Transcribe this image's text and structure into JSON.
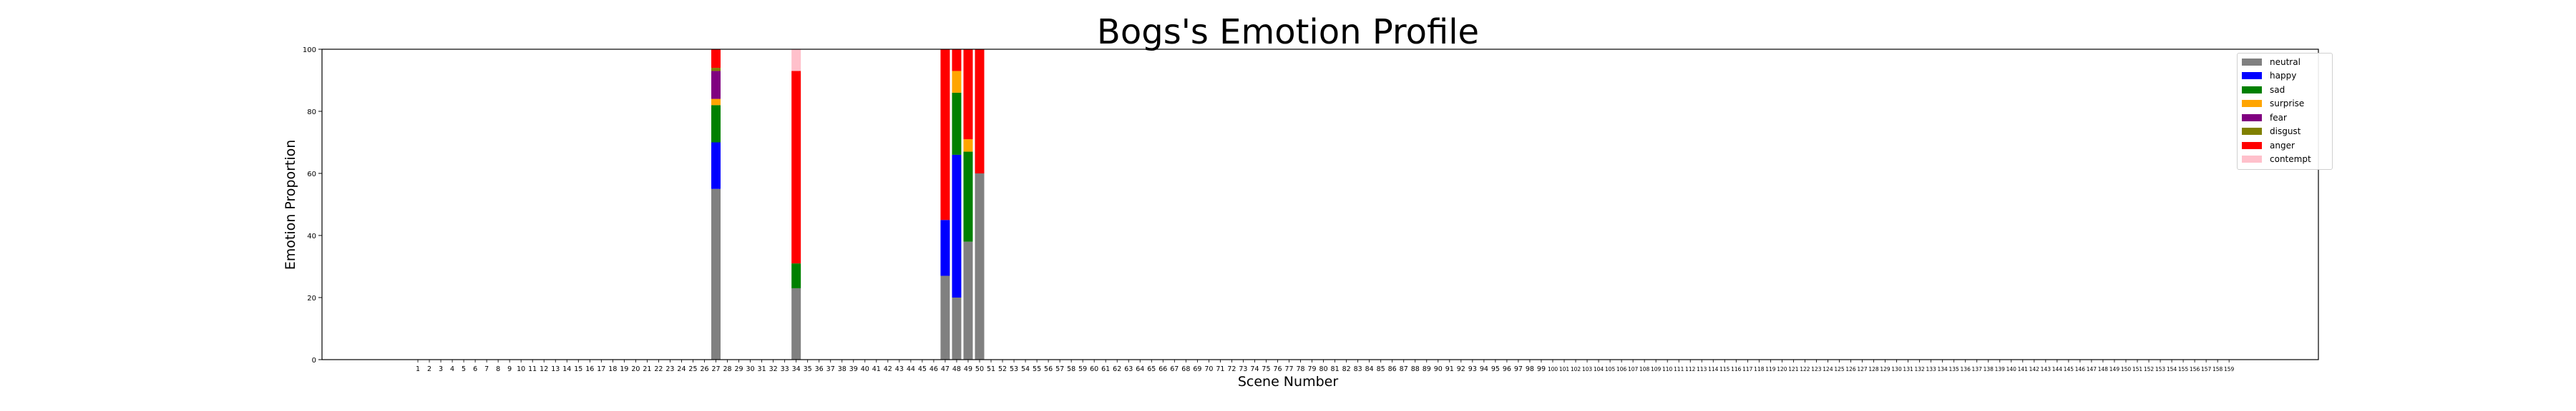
{
  "chart_data": {
    "type": "bar",
    "stacked": true,
    "title": "Bogs's Emotion Profile",
    "xlabel": "Scene Number",
    "ylabel": "Emotion Proportion",
    "ylim": [
      0,
      100
    ],
    "yticks": [
      0,
      20,
      40,
      60,
      80,
      100
    ],
    "x_range": [
      1,
      159
    ],
    "legend_position": "top-right",
    "grid": false,
    "series": [
      {
        "name": "neutral",
        "color": "#808080",
        "values": {
          "27": 55,
          "34": 23,
          "47": 27,
          "48": 20,
          "49": 38,
          "50": 60
        }
      },
      {
        "name": "happy",
        "color": "#0000ff",
        "values": {
          "27": 15,
          "34": 0,
          "47": 18,
          "48": 46,
          "49": 0,
          "50": 0
        }
      },
      {
        "name": "sad",
        "color": "#008000",
        "values": {
          "27": 12,
          "34": 8,
          "47": 0,
          "48": 20,
          "49": 29,
          "50": 0
        }
      },
      {
        "name": "surprise",
        "color": "#ffa500",
        "values": {
          "27": 2,
          "34": 0,
          "47": 0,
          "48": 7,
          "49": 4,
          "50": 0
        }
      },
      {
        "name": "fear",
        "color": "#800080",
        "values": {
          "27": 9,
          "34": 0,
          "47": 0,
          "48": 0,
          "49": 0,
          "50": 0
        }
      },
      {
        "name": "disgust",
        "color": "#808000",
        "values": {
          "27": 1,
          "34": 0,
          "47": 0,
          "48": 0,
          "49": 0,
          "50": 0
        }
      },
      {
        "name": "anger",
        "color": "#ff0000",
        "values": {
          "27": 6,
          "34": 62,
          "47": 55,
          "48": 7,
          "49": 29,
          "50": 40
        }
      },
      {
        "name": "contempt",
        "color": "#ffc0cb",
        "values": {
          "27": 0,
          "34": 7,
          "47": 0,
          "48": 0,
          "49": 0,
          "50": 0
        }
      }
    ]
  }
}
